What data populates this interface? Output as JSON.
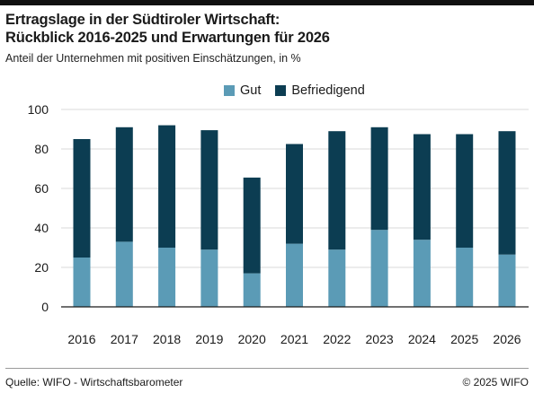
{
  "colors": {
    "gut": "#5b9bb6",
    "befriedigend": "#0c3d52",
    "grid": "#d9d9d9",
    "axis": "#1a1a1a",
    "text": "#1a1a1a"
  },
  "chart_data": {
    "type": "bar",
    "stacked": true,
    "title_lines": [
      "Ertragslage in der Südtiroler Wirtschaft:",
      "Rückblick 2016-2025 und Erwartungen für 2026"
    ],
    "subtitle": "Anteil der Unternehmen mit positiven Einschätzungen, in %",
    "xlabel": "",
    "ylabel": "",
    "ylim": [
      0,
      100
    ],
    "yticks": [
      0,
      20,
      40,
      60,
      80,
      100
    ],
    "grid": true,
    "legend_position": "top-center",
    "categories": [
      "2016",
      "2017",
      "2018",
      "2019",
      "2020",
      "2021",
      "2022",
      "2023",
      "2024",
      "2025",
      "2026"
    ],
    "series": [
      {
        "name": "Gut",
        "color": "#5b9bb6",
        "values": [
          25,
          33,
          30,
          29,
          17,
          32,
          29,
          39,
          34,
          30,
          26.5
        ]
      },
      {
        "name": "Befriedigend",
        "color": "#0c3d52",
        "values": [
          60,
          58,
          62,
          60.5,
          48.5,
          50.5,
          60,
          52,
          53.5,
          57.5,
          62.5
        ]
      }
    ]
  },
  "footer": {
    "source": "Quelle: WIFO - Wirtschaftsbarometer",
    "copyright": "© 2025 WIFO"
  }
}
